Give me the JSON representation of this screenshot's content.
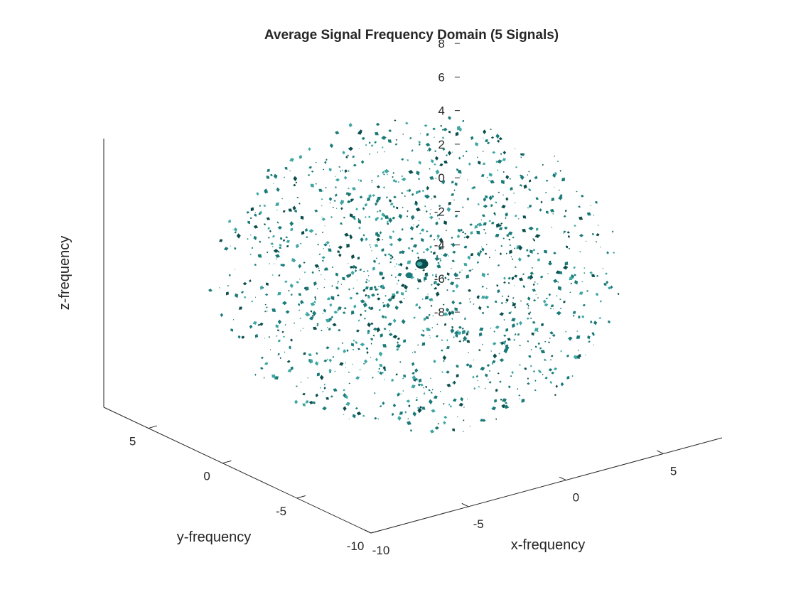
{
  "chart_data": {
    "type": "scatter",
    "title": "Average Signal Frequency Domain (5 Signals)",
    "xlabel": "x-frequency",
    "ylabel": "y-frequency",
    "zlabel": "z-frequency",
    "xlim": [
      -10,
      8
    ],
    "ylim": [
      -10,
      8
    ],
    "zlim": [
      -8,
      8
    ],
    "x_ticks": [
      -10,
      -5,
      0,
      5
    ],
    "y_ticks": [
      -10,
      -5,
      0,
      5
    ],
    "z_ticks": [
      -8,
      -6,
      -4,
      -2,
      0,
      2,
      4,
      6,
      8
    ],
    "x_tick_labels": [
      "-10",
      "-5",
      "0",
      "5"
    ],
    "y_tick_labels": [
      "-10",
      "-5",
      "0",
      "5"
    ],
    "z_tick_labels": [
      "-8",
      "-6",
      "-4",
      "-2",
      "0",
      "2",
      "4",
      "6",
      "8"
    ],
    "grid": false,
    "legend": "none",
    "colors": {
      "surface": "#1a7a78",
      "surface_light": "#3ea6a3",
      "surface_dark": "#0b4d4c",
      "axis": "#262626"
    },
    "peak": {
      "x": 0,
      "y": 0,
      "z": 0
    },
    "scatter_radius": 8.5,
    "scatter_count": 1400
  }
}
